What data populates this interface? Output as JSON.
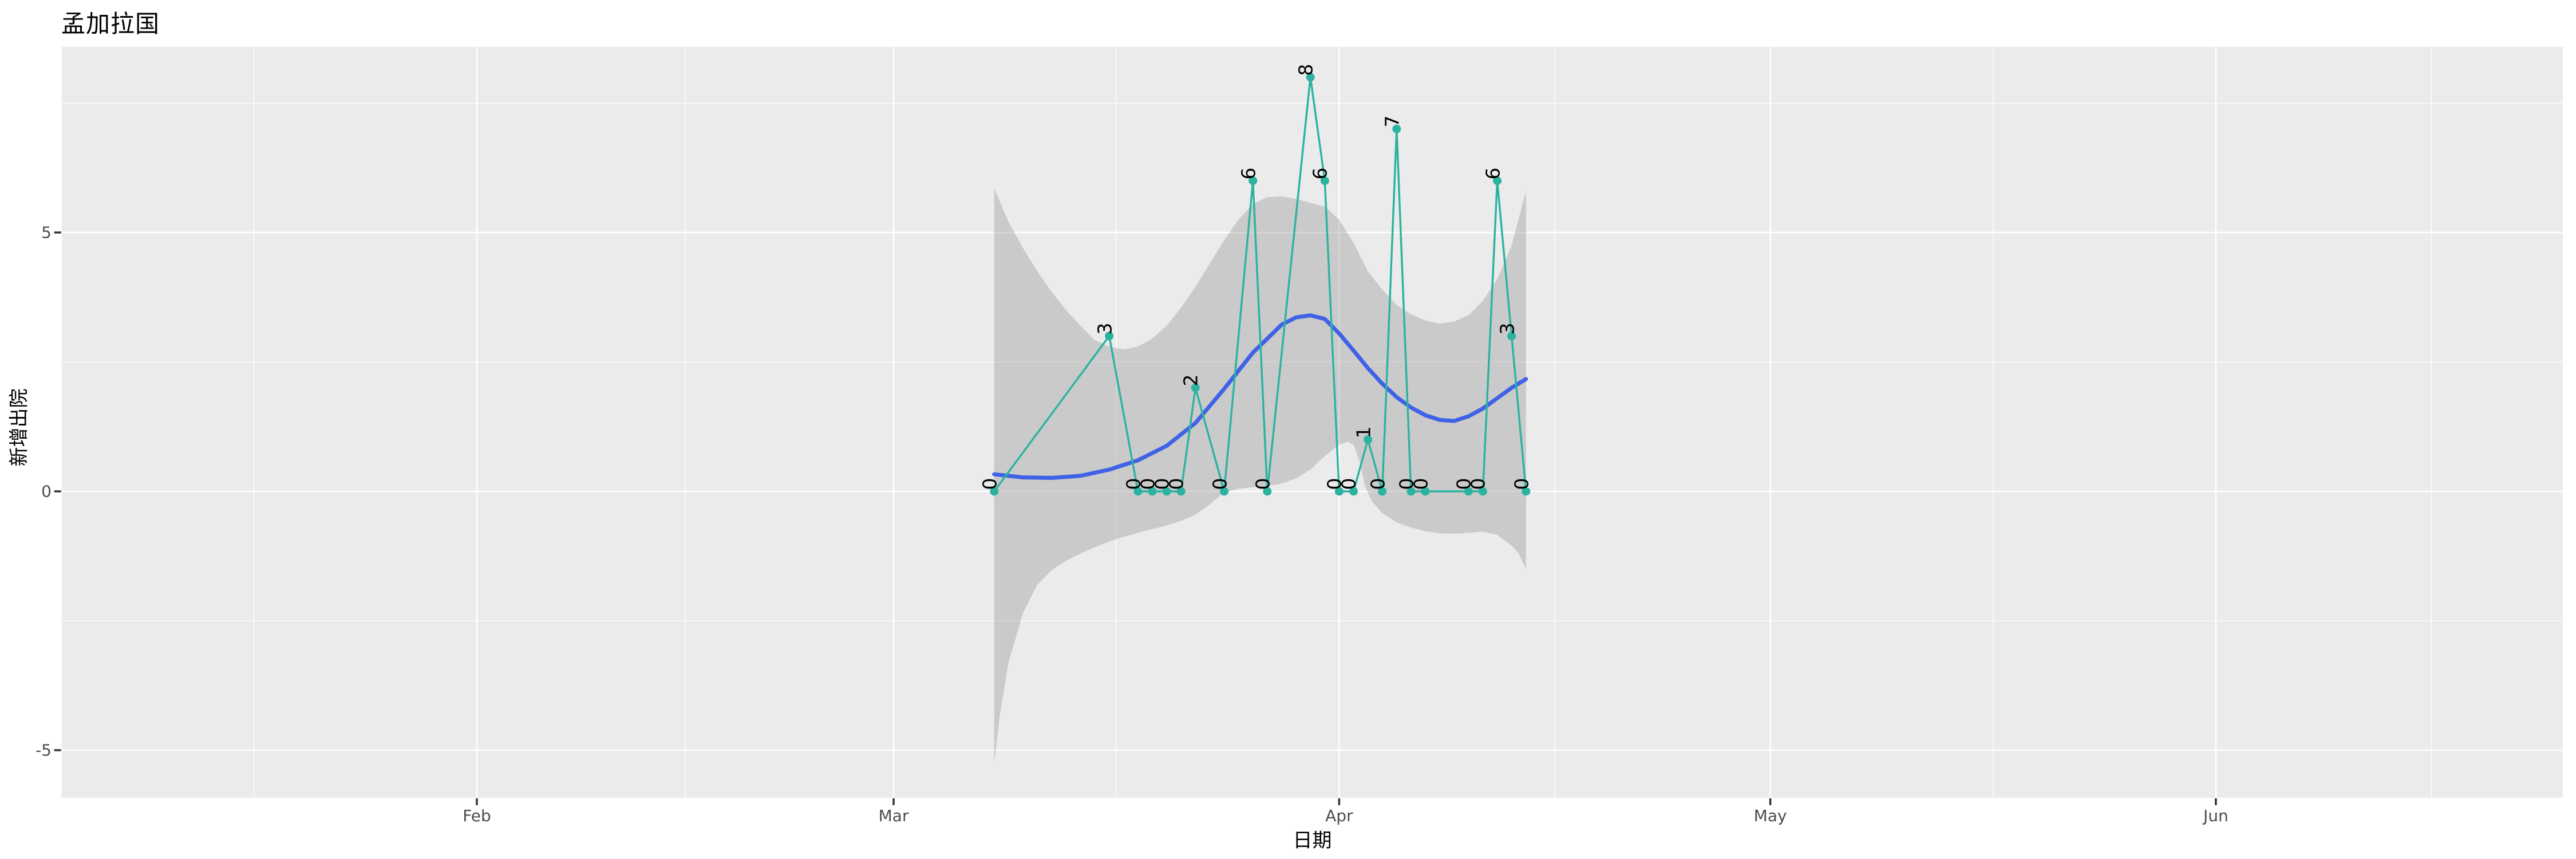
{
  "chart_data": {
    "type": "line",
    "title": "孟加拉国",
    "xlabel": "日期",
    "ylabel": "新增出院",
    "legend_position": "none",
    "grid": "on",
    "colors": {
      "panel_background": "#EBEBEB",
      "gridline": "#FFFFFF",
      "data_line": "#2BB3A0",
      "data_point": "#2BB3A0",
      "smooth_line": "#3F62E6",
      "confidence_band": "#999999",
      "confidence_band_opacity": 0.4,
      "axis_text": "#4D4D4D",
      "tick_mark": "#333333",
      "title_text": "#000000",
      "point_label_text": "#000000"
    },
    "x_axis": {
      "range_doy_2020": [
        2,
        176
      ],
      "ticks": [
        {
          "label": "Feb",
          "doy": 31
        },
        {
          "label": "Mar",
          "doy": 60
        },
        {
          "label": "Apr",
          "doy": 91
        },
        {
          "label": "May",
          "doy": 121
        },
        {
          "label": "Jun",
          "doy": 152
        }
      ],
      "minor_doy": [
        15.5,
        45.5,
        75.5,
        106,
        136.5,
        167
      ]
    },
    "y_axis": {
      "range": [
        -5.9,
        8.6
      ],
      "ticks": [
        {
          "label": "5",
          "value": 5
        },
        {
          "label": "0",
          "value": 0
        },
        {
          "label": "-5",
          "value": -5
        }
      ],
      "minor_values": [
        7.5,
        2.5,
        -2.5
      ]
    },
    "points": [
      {
        "date": "2020-03-08",
        "doy": 67,
        "value": 0
      },
      {
        "date": "2020-03-16",
        "doy": 75,
        "value": 3
      },
      {
        "date": "2020-03-18",
        "doy": 77,
        "value": 0
      },
      {
        "date": "2020-03-19",
        "doy": 78,
        "value": 0
      },
      {
        "date": "2020-03-20",
        "doy": 79,
        "value": 0
      },
      {
        "date": "2020-03-21",
        "doy": 80,
        "value": 0
      },
      {
        "date": "2020-03-22",
        "doy": 81,
        "value": 2
      },
      {
        "date": "2020-03-24",
        "doy": 83,
        "value": 0
      },
      {
        "date": "2020-03-26",
        "doy": 85,
        "value": 6
      },
      {
        "date": "2020-03-27",
        "doy": 86,
        "value": 0
      },
      {
        "date": "2020-03-30",
        "doy": 89,
        "value": 8
      },
      {
        "date": "2020-03-31",
        "doy": 90,
        "value": 6
      },
      {
        "date": "2020-04-01",
        "doy": 91,
        "value": 0
      },
      {
        "date": "2020-04-02",
        "doy": 92,
        "value": 0
      },
      {
        "date": "2020-04-03",
        "doy": 93,
        "value": 1
      },
      {
        "date": "2020-04-04",
        "doy": 94,
        "value": 0
      },
      {
        "date": "2020-04-05",
        "doy": 95,
        "value": 7
      },
      {
        "date": "2020-04-06",
        "doy": 96,
        "value": 0
      },
      {
        "date": "2020-04-07",
        "doy": 97,
        "value": 0
      },
      {
        "date": "2020-04-10",
        "doy": 100,
        "value": 0
      },
      {
        "date": "2020-04-11",
        "doy": 101,
        "value": 0
      },
      {
        "date": "2020-04-12",
        "doy": 102,
        "value": 6
      },
      {
        "date": "2020-04-13",
        "doy": 103,
        "value": 3
      },
      {
        "date": "2020-04-14",
        "doy": 104,
        "value": 0
      }
    ],
    "smooth_line": {
      "doy": [
        67,
        69,
        71,
        73,
        75,
        77,
        79,
        81,
        83,
        85,
        86,
        87,
        88,
        89,
        90,
        91,
        92,
        93,
        94,
        95,
        96,
        97,
        98,
        99,
        100,
        101,
        102,
        103,
        104
      ],
      "value": [
        0.33,
        0.27,
        0.26,
        0.3,
        0.42,
        0.6,
        0.88,
        1.32,
        1.98,
        2.68,
        2.95,
        3.22,
        3.36,
        3.4,
        3.33,
        3.05,
        2.72,
        2.38,
        2.08,
        1.82,
        1.62,
        1.47,
        1.38,
        1.36,
        1.45,
        1.6,
        1.8,
        2.0,
        2.17
      ]
    },
    "confidence_band": {
      "upper_doy": [
        67,
        68,
        69,
        70,
        71,
        72,
        73,
        74,
        75,
        76,
        77,
        78,
        79,
        80,
        81,
        82,
        83,
        84,
        85,
        86,
        87,
        88,
        89,
        90,
        91,
        92,
        93,
        94,
        95,
        96,
        97,
        98,
        99,
        100,
        101,
        102,
        103,
        104
      ],
      "upper": [
        5.85,
        5.2,
        4.7,
        4.25,
        3.85,
        3.5,
        3.2,
        2.92,
        2.8,
        2.74,
        2.8,
        2.95,
        3.2,
        3.55,
        3.95,
        4.4,
        4.85,
        5.25,
        5.55,
        5.68,
        5.7,
        5.65,
        5.57,
        5.5,
        5.25,
        4.8,
        4.25,
        3.9,
        3.6,
        3.42,
        3.3,
        3.24,
        3.28,
        3.4,
        3.68,
        4.1,
        4.75,
        5.8
      ],
      "lower_doy": [
        67,
        67.4,
        68,
        69,
        70,
        71,
        72,
        73,
        74,
        75,
        76,
        77,
        78,
        79,
        80,
        81,
        82,
        83,
        84,
        85,
        86,
        87,
        88,
        89,
        90,
        91,
        91.6,
        92,
        92.4,
        92.8,
        93.3,
        94,
        95,
        96,
        97,
        98,
        99,
        100,
        101,
        102,
        103,
        103.5,
        104
      ],
      "lower": [
        -5.25,
        -4.3,
        -3.3,
        -2.35,
        -1.8,
        -1.52,
        -1.34,
        -1.2,
        -1.08,
        -0.97,
        -0.88,
        -0.8,
        -0.73,
        -0.66,
        -0.57,
        -0.45,
        -0.25,
        -0.02,
        0.05,
        0.08,
        0.1,
        0.15,
        0.25,
        0.42,
        0.68,
        0.9,
        0.96,
        0.9,
        0.6,
        0.1,
        -0.2,
        -0.42,
        -0.6,
        -0.7,
        -0.77,
        -0.81,
        -0.82,
        -0.8,
        -0.78,
        -0.84,
        -1.05,
        -1.2,
        -1.5
      ]
    }
  }
}
